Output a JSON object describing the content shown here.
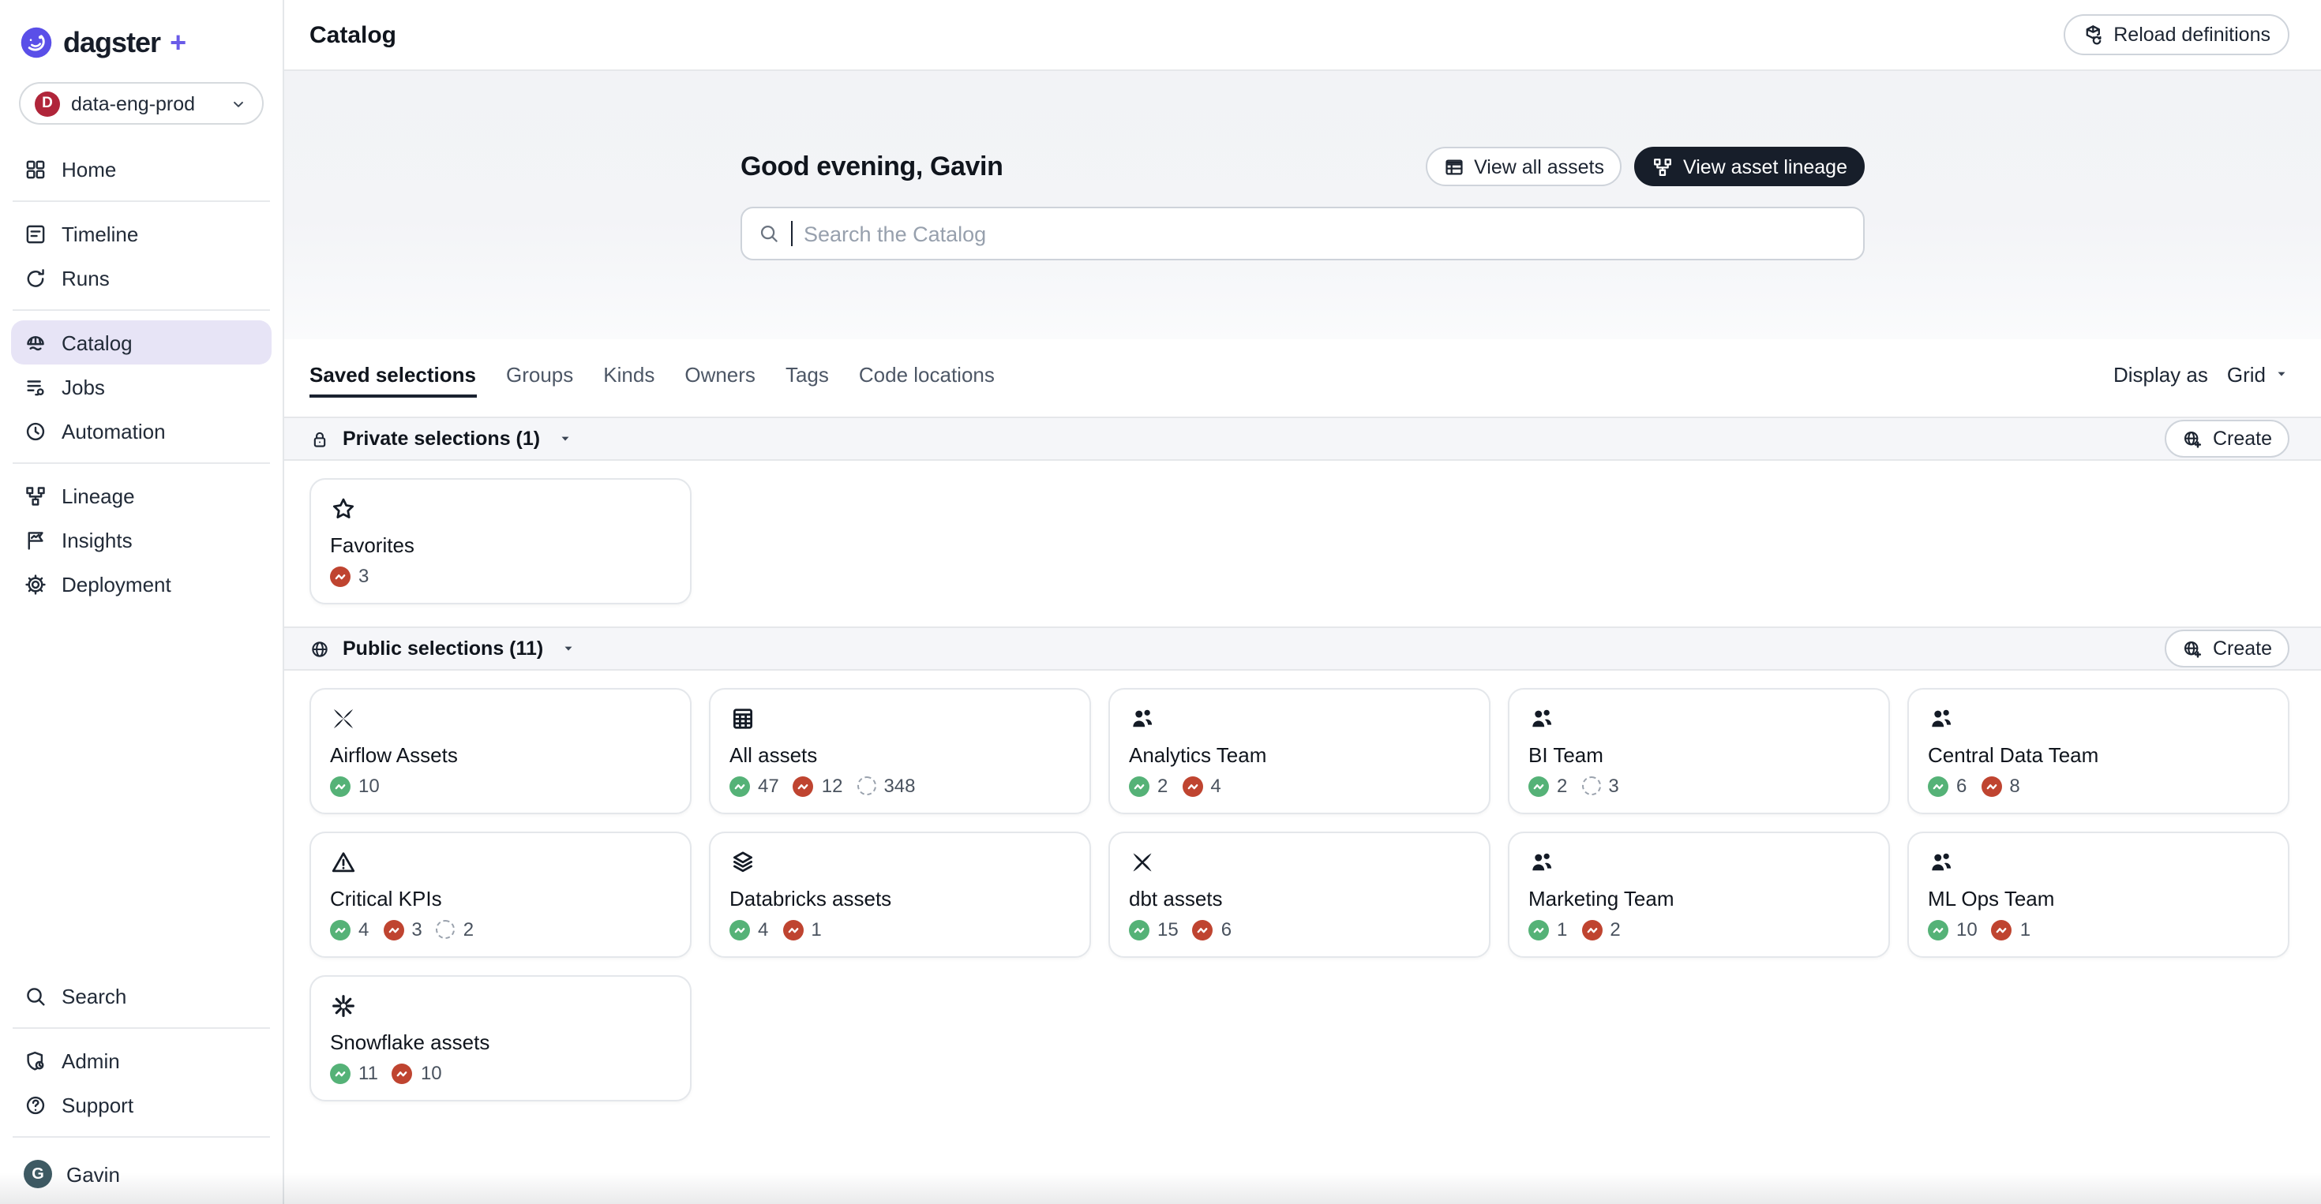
{
  "brand": {
    "name": "dagster",
    "plus": "+"
  },
  "deployment": {
    "avatar_letter": "D",
    "label": "data-eng-prod"
  },
  "sidebar": {
    "nav": [
      {
        "label": "Home",
        "icon": "home-icon",
        "divider_after": true
      },
      {
        "label": "Timeline",
        "icon": "timeline-icon"
      },
      {
        "label": "Runs",
        "icon": "runs-icon",
        "divider_after": true
      },
      {
        "label": "Catalog",
        "icon": "catalog-icon",
        "active": true
      },
      {
        "label": "Jobs",
        "icon": "jobs-icon"
      },
      {
        "label": "Automation",
        "icon": "automation-icon",
        "divider_after": true
      },
      {
        "label": "Lineage",
        "icon": "lineage-icon"
      },
      {
        "label": "Insights",
        "icon": "insights-icon"
      },
      {
        "label": "Deployment",
        "icon": "deployment-icon"
      }
    ],
    "footer": [
      {
        "label": "Search",
        "icon": "search-icon",
        "divider_after": true
      },
      {
        "label": "Admin",
        "icon": "admin-icon"
      },
      {
        "label": "Support",
        "icon": "support-icon"
      }
    ],
    "user": {
      "name": "Gavin",
      "avatar_letter": "G"
    }
  },
  "header": {
    "title": "Catalog",
    "reload_label": "Reload definitions"
  },
  "hero": {
    "greeting": "Good evening, Gavin",
    "view_all_assets_label": "View all assets",
    "view_asset_lineage_label": "View asset lineage",
    "search_placeholder": "Search the Catalog"
  },
  "tabs": {
    "items": [
      "Saved selections",
      "Groups",
      "Kinds",
      "Owners",
      "Tags",
      "Code locations"
    ],
    "active_index": 0,
    "display_as_label": "Display as",
    "display_as_value": "Grid"
  },
  "sections": [
    {
      "title": "Private selections (1)",
      "icon": "lock-icon",
      "create_label": "Create",
      "cards": [
        {
          "title": "Favorites",
          "icon": "star-icon",
          "badges": [
            {
              "type": "failed",
              "count": "3"
            }
          ]
        }
      ]
    },
    {
      "title": "Public selections (11)",
      "icon": "globe-icon",
      "create_label": "Create",
      "cards": [
        {
          "title": "Airflow Assets",
          "icon": "airflow-icon",
          "badges": [
            {
              "type": "success",
              "count": "10"
            }
          ]
        },
        {
          "title": "All assets",
          "icon": "table-grid-icon",
          "badges": [
            {
              "type": "success",
              "count": "47"
            },
            {
              "type": "failed",
              "count": "12"
            },
            {
              "type": "missing",
              "count": "348"
            }
          ]
        },
        {
          "title": "Analytics Team",
          "icon": "team-icon",
          "badges": [
            {
              "type": "success",
              "count": "2"
            },
            {
              "type": "failed",
              "count": "4"
            }
          ]
        },
        {
          "title": "BI Team",
          "icon": "team-icon",
          "badges": [
            {
              "type": "success",
              "count": "2"
            },
            {
              "type": "missing",
              "count": "3"
            }
          ]
        },
        {
          "title": "Central Data Team",
          "icon": "team-icon",
          "badges": [
            {
              "type": "success",
              "count": "6"
            },
            {
              "type": "failed",
              "count": "8"
            }
          ]
        },
        {
          "title": "Critical KPIs",
          "icon": "warning-icon",
          "badges": [
            {
              "type": "success",
              "count": "4"
            },
            {
              "type": "failed",
              "count": "3"
            },
            {
              "type": "missing",
              "count": "2"
            }
          ]
        },
        {
          "title": "Databricks assets",
          "icon": "layers-icon",
          "badges": [
            {
              "type": "success",
              "count": "4"
            },
            {
              "type": "failed",
              "count": "1"
            }
          ]
        },
        {
          "title": "dbt assets",
          "icon": "dbt-icon",
          "badges": [
            {
              "type": "success",
              "count": "15"
            },
            {
              "type": "failed",
              "count": "6"
            }
          ]
        },
        {
          "title": "Marketing Team",
          "icon": "team-icon",
          "badges": [
            {
              "type": "success",
              "count": "1"
            },
            {
              "type": "failed",
              "count": "2"
            }
          ]
        },
        {
          "title": "ML Ops Team",
          "icon": "team-icon",
          "badges": [
            {
              "type": "success",
              "count": "10"
            },
            {
              "type": "failed",
              "count": "1"
            }
          ]
        },
        {
          "title": "Snowflake assets",
          "icon": "snowflake-icon",
          "badges": [
            {
              "type": "success",
              "count": "11"
            },
            {
              "type": "failed",
              "count": "10"
            }
          ]
        }
      ]
    }
  ],
  "colors": {
    "brand_purple": "#6a5be8",
    "active_nav_bg": "#e7e4f6",
    "status_success": "#55b277",
    "status_failed": "#bf4430",
    "status_missing_border": "#9aa2ad",
    "deployment_avatar_bg": "#b0253a",
    "user_avatar_bg": "#3e5a63",
    "dark_button_bg": "#171e2a"
  }
}
